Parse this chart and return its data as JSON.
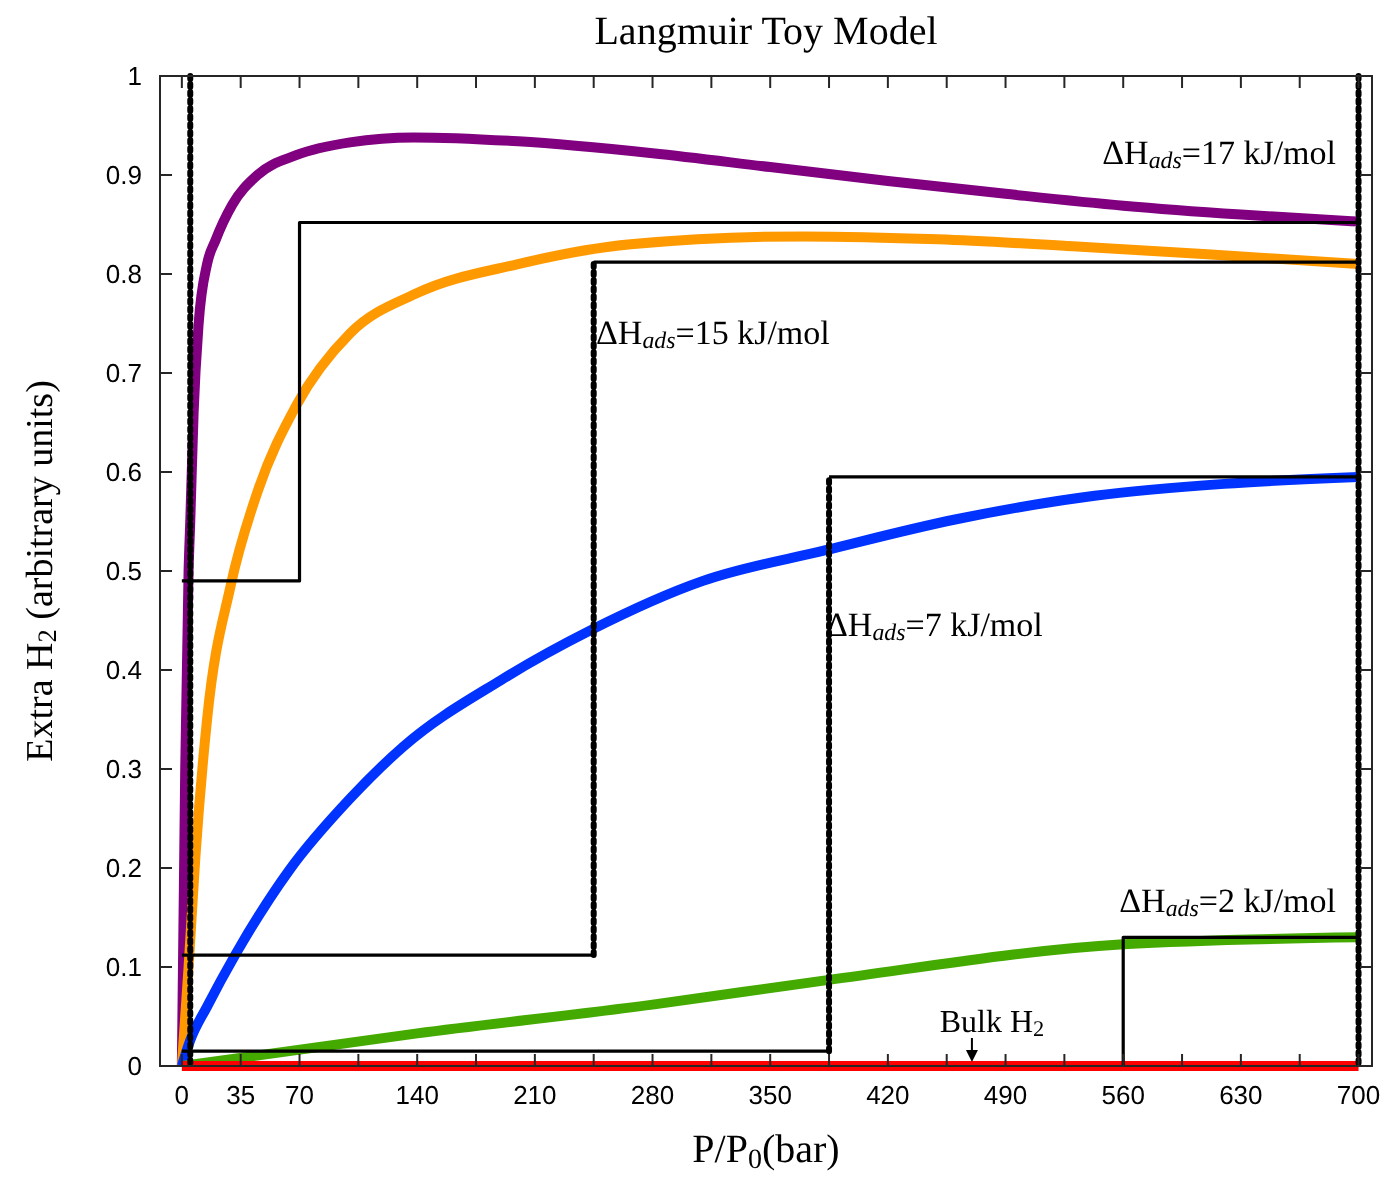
{
  "chart_data": {
    "type": "line",
    "title": "Langmuir Toy Model",
    "xlabel": "P/P$_{0}$(bar)",
    "ylabel": "Extra H$_{2}$ (arbitrary units)",
    "xlim": [
      -13,
      708
    ],
    "ylim": [
      0,
      1
    ],
    "xticks": [
      0,
      35,
      70,
      {
        "value": 105,
        "label": null
      },
      140,
      {
        "value": 175,
        "label": null
      },
      210,
      {
        "value": 245,
        "label": null
      },
      280,
      {
        "value": 315,
        "label": null
      },
      350,
      {
        "value": 385,
        "label": null
      },
      420,
      {
        "value": 455,
        "label": null
      },
      490,
      {
        "value": 525,
        "label": null
      },
      560,
      {
        "value": 595,
        "label": null
      },
      630,
      {
        "value": 665,
        "label": null
      },
      700
    ],
    "yticks": [
      0,
      0.1,
      0.2,
      0.3,
      0.4,
      0.5,
      0.6,
      0.7,
      0.8,
      0.9,
      1
    ],
    "grid": false,
    "marker": "none",
    "series": [
      {
        "name": "ΔH$_{ads}$=17 kJ/mol",
        "color": "#800080",
        "x": [
          0,
          2,
          4,
          5,
          7,
          10,
          15,
          20,
          30,
          45,
          68,
          100,
          138,
          200,
          280,
          350,
          420,
          490,
          560,
          630,
          700
        ],
        "values": [
          0,
          0.3,
          0.5,
          0.55,
          0.66,
          0.75,
          0.81,
          0.834,
          0.87,
          0.9,
          0.92,
          0.933,
          0.938,
          0.934,
          0.922,
          0.908,
          0.894,
          0.881,
          0.869,
          0.86,
          0.853
        ]
      },
      {
        "name": "ΔH$_{ads}$=15 kJ/mol",
        "color": "#ff9900",
        "x": [
          0,
          4,
          8,
          15,
          29,
          45,
          68,
          100,
          139,
          200,
          267,
          370,
          450,
          530,
          610,
          700
        ],
        "values": [
          0,
          0.1,
          0.21,
          0.35,
          0.485,
          0.58,
          0.667,
          0.74,
          0.78,
          0.81,
          0.83,
          0.838,
          0.835,
          0.828,
          0.82,
          0.81
        ],
        "line_style": "solid"
      },
      {
        "name": "ΔH$_{ads}$=7 kJ/mol",
        "color": "#0033ff",
        "x": [
          0,
          5,
          15,
          32,
          64,
          100,
          132,
          190,
          243,
          310,
          383,
          460,
          543,
          620,
          700
        ],
        "values": [
          0,
          0.026,
          0.06,
          0.113,
          0.198,
          0.27,
          0.323,
          0.39,
          0.44,
          0.49,
          0.521,
          0.552,
          0.576,
          0.588,
          0.595
        ]
      },
      {
        "name": "ΔH$_{ads}$=2 kJ/mol",
        "color": "#44aa00",
        "x": [
          0,
          140,
          280,
          385,
          560,
          700
        ],
        "values": [
          0,
          0.033,
          0.062,
          0.087,
          0.123,
          0.13
        ]
      },
      {
        "color": "#ff0000",
        "x": [
          0,
          700
        ],
        "values": [
          0,
          0
        ]
      },
      {
        "color": "#000000",
        "x": [
          0,
          70,
          70,
          700
        ],
        "values": [
          0.49,
          0.49,
          0.852,
          0.852
        ],
        "line_style": "solid"
      },
      {
        "color": "#000000",
        "x": [
          0,
          245
        ],
        "values": [
          0.112,
          0.112
        ],
        "line_style": "solid"
      },
      {
        "color": "#000000",
        "x": [
          245,
          245
        ],
        "values": [
          0.112,
          0.812
        ],
        "line_style": "dotted"
      },
      {
        "color": "#000000",
        "x": [
          245,
          700
        ],
        "values": [
          0.812,
          0.812
        ],
        "line_style": "solid"
      },
      {
        "color": "#000000",
        "x": [
          0,
          385
        ],
        "values": [
          0.015,
          0.015
        ],
        "line_style": "solid"
      },
      {
        "color": "#000000",
        "x": [
          385,
          385
        ],
        "values": [
          0.015,
          0.595
        ],
        "line_style": "dotted"
      },
      {
        "color": "#000000",
        "x": [
          385,
          700
        ],
        "values": [
          0.595,
          0.595
        ],
        "line_style": "solid"
      },
      {
        "color": "#000000",
        "x": [
          560,
          560,
          700
        ],
        "values": [
          0,
          0.13,
          0.13
        ],
        "line_style": "solid"
      }
    ],
    "ref_lines": [
      {
        "axis": "x",
        "value": 5,
        "color": "#000000",
        "line_style": "dotted"
      },
      {
        "axis": "x",
        "value": 700,
        "color": "#000000",
        "line_style": "dotted"
      }
    ],
    "annotations": [
      {
        "text": "Bulk H$_{2}$",
        "x": 470,
        "y": 0
      }
    ]
  }
}
